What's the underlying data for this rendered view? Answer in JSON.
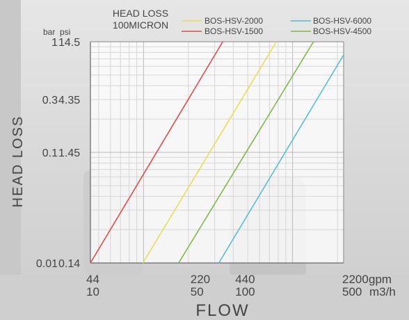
{
  "chart_data": {
    "type": "line",
    "title": [
      "HEAD LOSS",
      "100MICRON"
    ],
    "xlabel": "FLOW",
    "ylabel": "HEAD LOSS",
    "x_scale": "log",
    "y_scale": "log",
    "x_unit_gpm": "gpm",
    "x_unit_m3h": "m3/h",
    "y_unit_bar": "bar",
    "y_unit_psi": "psi",
    "xlim_gpm": [
      44,
      2200
    ],
    "ylim_bar": [
      0.01,
      1
    ],
    "x_ticks": [
      {
        "gpm": 44,
        "gpm_label": "44",
        "m3h_label": "10"
      },
      {
        "gpm": 220,
        "gpm_label": "220",
        "m3h_label": "50"
      },
      {
        "gpm": 440,
        "gpm_label": "440",
        "m3h_label": "100"
      },
      {
        "gpm": 2200,
        "gpm_label": "2200",
        "m3h_label": "500"
      }
    ],
    "y_ticks": [
      {
        "bar": 0.01,
        "bar_label": "0.01",
        "psi_label": "0.14"
      },
      {
        "bar": 0.1,
        "bar_label": "0.1",
        "psi_label": "1.45"
      },
      {
        "bar": 0.3,
        "bar_label": "0.3",
        "psi_label": "4.35"
      },
      {
        "bar": 1,
        "bar_label": "1",
        "psi_label": "14.5"
      }
    ],
    "series": [
      {
        "name": "BOS-HSV-1500",
        "color": "#e04a4a",
        "x_gpm": [
          44,
          340
        ],
        "y_bar": [
          0.01,
          1
        ]
      },
      {
        "name": "BOS-HSV-2000",
        "color": "#e3e052",
        "x_gpm": [
          99,
          778
        ],
        "y_bar": [
          0.01,
          1
        ]
      },
      {
        "name": "BOS-HSV-4500",
        "color": "#7fb84a",
        "x_gpm": [
          172,
          1380
        ],
        "y_bar": [
          0.01,
          1
        ]
      },
      {
        "name": "BOS-HSV-6000",
        "color": "#55c0c8",
        "x_gpm": [
          320,
          2200
        ],
        "y_bar": [
          0.01,
          0.76
        ]
      }
    ],
    "legend": "top",
    "grid": true
  }
}
